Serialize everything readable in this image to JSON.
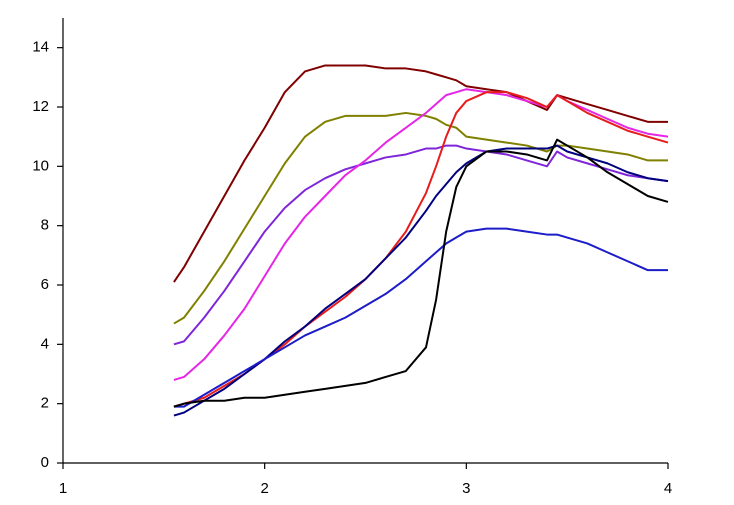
{
  "chart_data": {
    "type": "line",
    "x": [
      1.55,
      1.6,
      1.7,
      1.8,
      1.9,
      2.0,
      2.1,
      2.2,
      2.3,
      2.4,
      2.5,
      2.6,
      2.7,
      2.8,
      2.85,
      2.9,
      2.95,
      3.0,
      3.1,
      3.2,
      3.3,
      3.4,
      3.45,
      3.5,
      3.6,
      3.7,
      3.8,
      3.9,
      4.0
    ],
    "series": [
      {
        "color": "#800000",
        "values": [
          6.1,
          6.6,
          7.8,
          9.0,
          10.2,
          11.3,
          12.5,
          13.2,
          13.4,
          13.4,
          13.4,
          13.3,
          13.3,
          13.2,
          13.1,
          13.0,
          12.9,
          12.7,
          12.6,
          12.5,
          12.2,
          11.9,
          12.4,
          12.3,
          12.1,
          11.9,
          11.7,
          11.5,
          11.5
        ]
      },
      {
        "color": "#808000",
        "values": [
          4.7,
          4.9,
          5.8,
          6.8,
          7.9,
          9.0,
          10.1,
          11.0,
          11.5,
          11.7,
          11.7,
          11.7,
          11.8,
          11.7,
          11.6,
          11.4,
          11.3,
          11.0,
          10.9,
          10.8,
          10.7,
          10.5,
          10.7,
          10.7,
          10.6,
          10.5,
          10.4,
          10.2,
          10.2
        ]
      },
      {
        "color": "#7f26d9",
        "values": [
          4.0,
          4.1,
          4.9,
          5.8,
          6.8,
          7.8,
          8.6,
          9.2,
          9.6,
          9.9,
          10.1,
          10.3,
          10.4,
          10.6,
          10.6,
          10.7,
          10.7,
          10.6,
          10.5,
          10.4,
          10.2,
          10.0,
          10.5,
          10.3,
          10.1,
          9.9,
          9.7,
          9.6,
          9.5
        ]
      },
      {
        "color": "#e626e6",
        "values": [
          2.8,
          2.9,
          3.5,
          4.3,
          5.2,
          6.3,
          7.4,
          8.3,
          9.0,
          9.7,
          10.2,
          10.8,
          11.3,
          11.8,
          12.1,
          12.4,
          12.5,
          12.6,
          12.5,
          12.4,
          12.2,
          12.0,
          12.4,
          12.2,
          11.9,
          11.6,
          11.3,
          11.1,
          11.0
        ]
      },
      {
        "color": "#e81c1c",
        "values": [
          1.9,
          2.0,
          2.2,
          2.6,
          3.0,
          3.5,
          4.0,
          4.6,
          5.1,
          5.6,
          6.2,
          6.9,
          7.8,
          9.1,
          10.0,
          11.0,
          11.8,
          12.2,
          12.5,
          12.5,
          12.3,
          12.0,
          12.4,
          12.2,
          11.8,
          11.5,
          11.2,
          11.0,
          10.8
        ]
      },
      {
        "color": "#00007f",
        "values": [
          1.6,
          1.7,
          2.1,
          2.5,
          3.0,
          3.5,
          4.1,
          4.6,
          5.2,
          5.7,
          6.2,
          6.9,
          7.6,
          8.5,
          9.0,
          9.4,
          9.8,
          10.1,
          10.5,
          10.6,
          10.6,
          10.6,
          10.7,
          10.5,
          10.3,
          10.1,
          9.8,
          9.6,
          9.5
        ]
      },
      {
        "color": "#1c1cc8",
        "values": [
          1.9,
          1.9,
          2.3,
          2.7,
          3.1,
          3.5,
          3.9,
          4.3,
          4.6,
          4.9,
          5.3,
          5.7,
          6.2,
          6.8,
          7.1,
          7.4,
          7.6,
          7.8,
          7.9,
          7.9,
          7.8,
          7.7,
          7.7,
          7.6,
          7.4,
          7.1,
          6.8,
          6.5,
          6.5
        ]
      },
      {
        "color": "#000000",
        "values": [
          1.9,
          2.0,
          2.1,
          2.1,
          2.2,
          2.2,
          2.3,
          2.4,
          2.5,
          2.6,
          2.7,
          2.9,
          3.1,
          3.9,
          5.5,
          7.8,
          9.3,
          10.0,
          10.5,
          10.5,
          10.4,
          10.2,
          10.9,
          10.7,
          10.3,
          9.8,
          9.4,
          9.0,
          8.8
        ]
      }
    ],
    "xlim": [
      1,
      4
    ],
    "xticks": [
      1,
      2,
      3,
      4
    ],
    "ylim": [
      0,
      15
    ],
    "yticks": [
      0,
      2,
      4,
      6,
      8,
      10,
      12,
      14
    ],
    "grid": false
  }
}
